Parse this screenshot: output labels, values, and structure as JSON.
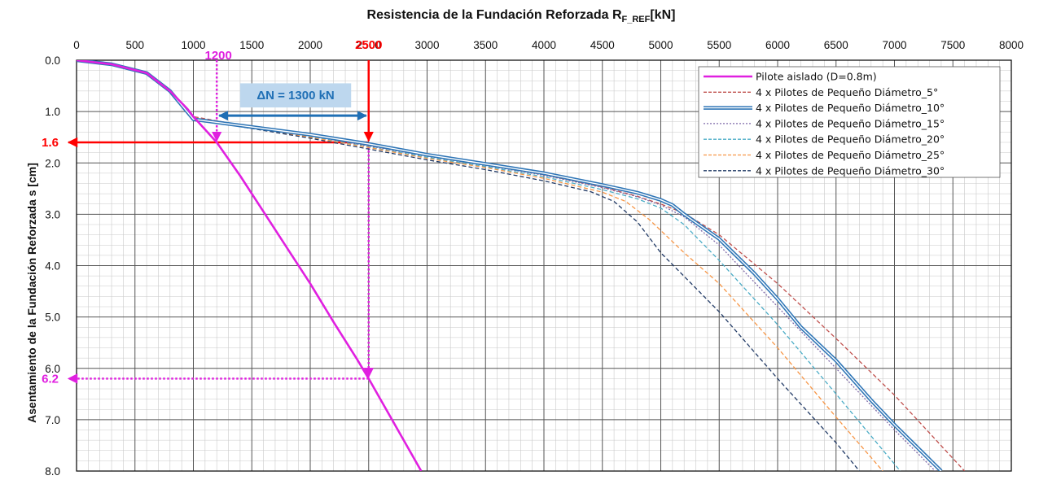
{
  "chart_data": {
    "type": "line",
    "title": "Resistencia de la Fundación Reforzada R",
    "title_subscript": "F_REF",
    "title_unit": "[kN]",
    "ylabel": "Asentamiento de la Fundación Reforzada s [cm]",
    "xlim": [
      0,
      8000
    ],
    "ylim": [
      0,
      8
    ],
    "x_ticks": [
      "0",
      "500",
      "1000",
      "1500",
      "2000",
      "2500",
      "3000",
      "3500",
      "4000",
      "4500",
      "5000",
      "5500",
      "6000",
      "6500",
      "7000",
      "7500",
      "8000"
    ],
    "y_ticks": [
      "0.0",
      "1.0",
      "2.0",
      "3.0",
      "4.0",
      "5.0",
      "6.0",
      "7.0",
      "8.0"
    ],
    "x_axis_position": "top",
    "y_axis_inverted": true,
    "grid": true,
    "legend_position": "top-right",
    "series": [
      {
        "name": "Pilote aislado (D=0.8m)",
        "color": "#e020e0",
        "style": "solid",
        "x": [
          0,
          300,
          600,
          800,
          950,
          1000,
          1100,
          1200,
          1400,
          1600,
          1800,
          2000,
          2200,
          2400,
          2500,
          2600,
          2800,
          2950
        ],
        "y": [
          0.0,
          0.08,
          0.25,
          0.6,
          0.95,
          1.1,
          1.35,
          1.6,
          2.25,
          2.95,
          3.65,
          4.35,
          5.1,
          5.82,
          6.2,
          6.6,
          7.4,
          8.0
        ]
      },
      {
        "name": "4 x Pilotes de Pequeño Diámetro_5°",
        "color": "#c0504d",
        "style": "dashed",
        "x": [
          0,
          300,
          600,
          800,
          1000,
          1500,
          2000,
          2500,
          3000,
          3500,
          4000,
          4500,
          4800,
          5000,
          5200,
          5500,
          6000,
          6500,
          7000,
          7600
        ],
        "y": [
          0.0,
          0.08,
          0.25,
          0.6,
          1.1,
          1.3,
          1.47,
          1.66,
          1.86,
          2.04,
          2.23,
          2.47,
          2.65,
          2.8,
          2.98,
          3.4,
          4.35,
          5.42,
          6.52,
          8.0
        ]
      },
      {
        "name": "4 x Pilotes de Pequeño Diámetro_10°",
        "color": "#2e75b6",
        "style": "double",
        "x": [
          0,
          300,
          600,
          800,
          1000,
          1500,
          2000,
          2500,
          3000,
          3500,
          4000,
          4500,
          4800,
          5000,
          5100,
          5200,
          5500,
          5800,
          6000,
          6200,
          6500,
          6800,
          7000,
          7400
        ],
        "y": [
          0.0,
          0.08,
          0.25,
          0.6,
          1.15,
          1.3,
          1.45,
          1.63,
          1.84,
          2.02,
          2.2,
          2.43,
          2.58,
          2.72,
          2.82,
          3.0,
          3.48,
          4.15,
          4.65,
          5.2,
          5.85,
          6.62,
          7.1,
          8.0
        ]
      },
      {
        "name": "4 x Pilotes de Pequeño Diámetro_15°",
        "color": "#7f6aa8",
        "style": "dotted",
        "x": [
          0,
          300,
          600,
          800,
          1000,
          1500,
          2000,
          2500,
          3000,
          3500,
          4000,
          4500,
          4800,
          5000,
          5200,
          5500,
          6000,
          6500,
          7000,
          7350
        ],
        "y": [
          0.0,
          0.08,
          0.25,
          0.6,
          1.15,
          1.32,
          1.48,
          1.67,
          1.87,
          2.05,
          2.24,
          2.48,
          2.66,
          2.82,
          3.05,
          3.6,
          4.8,
          6.0,
          7.2,
          8.0
        ]
      },
      {
        "name": "4 x Pilotes de Pequeño Diámetro_20°",
        "color": "#4bacc6",
        "style": "dashed",
        "x": [
          0,
          300,
          600,
          800,
          1000,
          1500,
          2000,
          2500,
          3000,
          3500,
          4000,
          4500,
          4800,
          5000,
          5200,
          5500,
          6000,
          6500,
          7050
        ],
        "y": [
          0.0,
          0.08,
          0.25,
          0.6,
          1.15,
          1.32,
          1.49,
          1.69,
          1.89,
          2.07,
          2.27,
          2.52,
          2.7,
          2.88,
          3.2,
          3.9,
          5.15,
          6.5,
          8.0
        ]
      },
      {
        "name": "4 x Pilotes de Pequeño Diámetro_25°",
        "color": "#f79646",
        "style": "dashed",
        "x": [
          0,
          300,
          600,
          800,
          1000,
          1500,
          2000,
          2500,
          3000,
          3500,
          4000,
          4500,
          4700,
          4900,
          5200,
          5500,
          6000,
          6500,
          6900
        ],
        "y": [
          0.0,
          0.08,
          0.25,
          0.6,
          1.15,
          1.32,
          1.5,
          1.7,
          1.91,
          2.09,
          2.3,
          2.57,
          2.75,
          3.1,
          3.75,
          4.35,
          5.6,
          6.95,
          8.0
        ]
      },
      {
        "name": "4 x Pilotes de Pequeño Diámetro_30°",
        "color": "#1f3864",
        "style": "dashed",
        "x": [
          0,
          300,
          600,
          800,
          1000,
          1500,
          2000,
          2500,
          3000,
          3500,
          4000,
          4400,
          4600,
          4800,
          5000,
          5500,
          6000,
          6500,
          6700
        ],
        "y": [
          0.0,
          0.08,
          0.25,
          0.6,
          1.15,
          1.33,
          1.52,
          1.73,
          1.94,
          2.13,
          2.35,
          2.56,
          2.75,
          3.15,
          3.75,
          4.9,
          6.2,
          7.45,
          8.0
        ]
      }
    ],
    "annotations": {
      "x_1200": "1200",
      "x_2500": "2500",
      "y_1_6": "1.6",
      "y_6_2": "6.2",
      "delta_label": "ΔN = 1300 kN",
      "red_color": "#ff0000",
      "magenta_color": "#e020e0",
      "delta_color": "#1f6fb5",
      "delta_box_color": "#bdd7ee"
    }
  }
}
